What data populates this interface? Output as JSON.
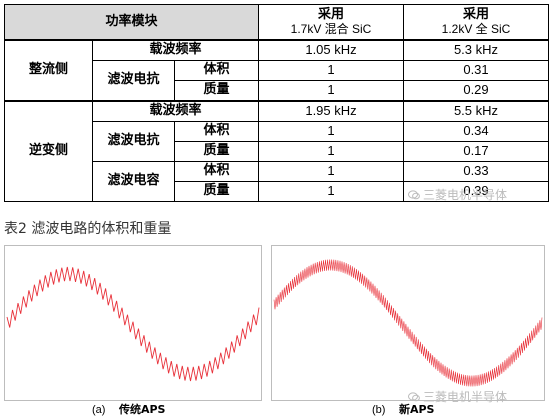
{
  "table": {
    "header": {
      "module": "功率模块",
      "col1_line1": "采用",
      "col1_line2": "1.7kV 混合 SiC",
      "col2_line1": "采用",
      "col2_line2": "1.2kV 全 SiC"
    },
    "rectifier": {
      "group": "整流侧",
      "carrier_label": "载波频率",
      "carrier_v1": "1.05 kHz",
      "carrier_v2": "5.3 kHz",
      "reactor_label": "滤波电抗",
      "volume_label": "体积",
      "volume_v1": "1",
      "volume_v2": "0.31",
      "mass_label": "质量",
      "mass_v1": "1",
      "mass_v2": "0.29"
    },
    "inverter": {
      "group": "逆变侧",
      "carrier_label": "载波频率",
      "carrier_v1": "1.95 kHz",
      "carrier_v2": "5.5 kHz",
      "reactor_label": "滤波电抗",
      "r_volume_label": "体积",
      "r_volume_v1": "1",
      "r_volume_v2": "0.34",
      "r_mass_label": "质量",
      "r_mass_v1": "1",
      "r_mass_v2": "0.17",
      "capacitor_label": "滤波电容",
      "c_volume_label": "体积",
      "c_volume_v1": "1",
      "c_volume_v2": "0.33",
      "c_mass_label": "质量",
      "c_mass_v1": "1",
      "c_mass_v2": "0.39"
    }
  },
  "caption": "表2  滤波电路的体积和重量",
  "watermark_text": "三菱电机半导体",
  "plots": {
    "a": {
      "letter": "(a)",
      "name": "传统APS"
    },
    "b": {
      "letter": "(b)",
      "name": "新APS"
    }
  },
  "colors": {
    "waveform": "#e8313a",
    "header_shade": "#d9d9d9",
    "watermark": "#bbbbbb"
  }
}
